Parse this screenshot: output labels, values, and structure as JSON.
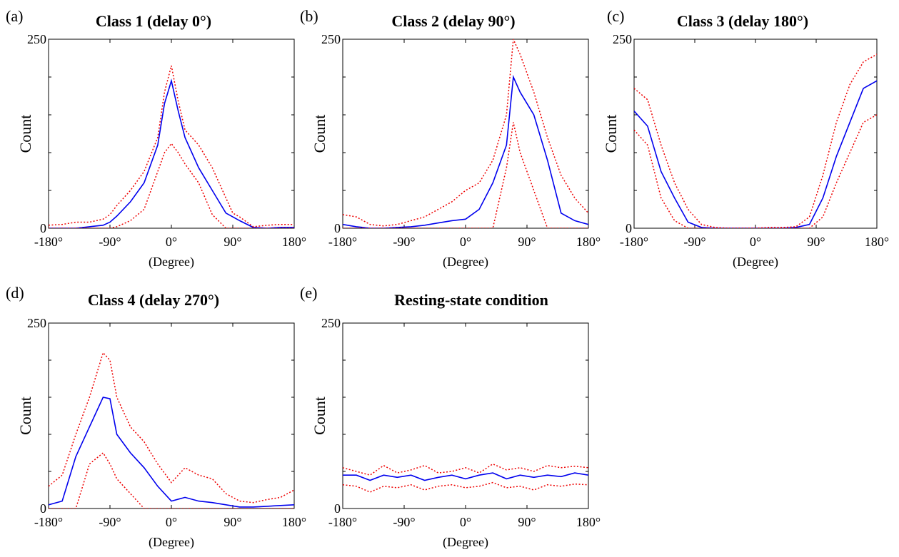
{
  "figure": {
    "xlabel": "(Degree)",
    "ylabel": "Count",
    "colors": {
      "mean": "#0000ee",
      "bounds": "#ee0000"
    }
  },
  "chart_data": [
    {
      "type": "line",
      "panel": "(a)",
      "title": "Class 1 (delay 0°)",
      "xlabel": "(Degree)",
      "ylabel": "Count",
      "xlim": [
        -180,
        180
      ],
      "ylim": [
        0,
        250
      ],
      "x_ticks": [
        "-180°",
        "-90°",
        "0°",
        "90°",
        "180°"
      ],
      "y_ticks": [
        "0",
        "250"
      ],
      "series": [
        {
          "style": "solid",
          "x": [
            -180,
            -160,
            -140,
            -120,
            -100,
            -90,
            -80,
            -60,
            -40,
            -20,
            -10,
            0,
            10,
            20,
            40,
            60,
            80,
            90,
            100,
            120,
            140,
            160,
            180
          ],
          "values": [
            0,
            0,
            0,
            2,
            4,
            8,
            16,
            35,
            60,
            110,
            165,
            195,
            155,
            120,
            80,
            50,
            20,
            15,
            10,
            1,
            0,
            1,
            1
          ]
        },
        {
          "style": "dotted",
          "x": [
            -180,
            -160,
            -140,
            -120,
            -100,
            -90,
            -80,
            -60,
            -40,
            -20,
            -10,
            0,
            10,
            20,
            40,
            60,
            80,
            90,
            100,
            120,
            140,
            160,
            180
          ],
          "values": [
            4,
            5,
            8,
            8,
            12,
            18,
            30,
            50,
            75,
            120,
            180,
            215,
            168,
            130,
            110,
            80,
            40,
            20,
            15,
            2,
            4,
            5,
            5
          ]
        },
        {
          "style": "dotted",
          "x": [
            -180,
            -160,
            -140,
            -120,
            -100,
            -90,
            -80,
            -60,
            -40,
            -20,
            -10,
            0,
            10,
            20,
            40,
            60,
            80,
            90,
            100,
            120,
            140,
            160,
            180
          ],
          "values": [
            0,
            0,
            0,
            0,
            0,
            0,
            2,
            10,
            25,
            75,
            100,
            112,
            100,
            85,
            60,
            18,
            0,
            0,
            0,
            0,
            0,
            0,
            0
          ]
        }
      ]
    },
    {
      "type": "line",
      "panel": "(b)",
      "title": "Class 2 (delay 90°)",
      "xlabel": "(Degree)",
      "ylabel": "Count",
      "xlim": [
        -180,
        180
      ],
      "ylim": [
        0,
        250
      ],
      "x_ticks": [
        "-180°",
        "-90°",
        "0°",
        "90°",
        "180°"
      ],
      "y_ticks": [
        "0",
        "250"
      ],
      "series": [
        {
          "style": "solid",
          "x": [
            -180,
            -160,
            -140,
            -120,
            -100,
            -80,
            -60,
            -40,
            -20,
            0,
            20,
            40,
            60,
            70,
            80,
            100,
            120,
            140,
            160,
            180
          ],
          "values": [
            5,
            2,
            0,
            0,
            1,
            2,
            4,
            7,
            10,
            12,
            25,
            60,
            110,
            200,
            180,
            150,
            90,
            20,
            10,
            5
          ]
        },
        {
          "style": "dotted",
          "x": [
            -180,
            -160,
            -140,
            -120,
            -100,
            -80,
            -60,
            -40,
            -20,
            0,
            20,
            40,
            60,
            70,
            80,
            100,
            120,
            140,
            160,
            180
          ],
          "values": [
            18,
            15,
            5,
            3,
            5,
            10,
            15,
            25,
            35,
            50,
            60,
            90,
            150,
            270,
            230,
            180,
            120,
            70,
            40,
            20
          ]
        },
        {
          "style": "dotted",
          "x": [
            -180,
            -160,
            -140,
            -120,
            -100,
            -80,
            -60,
            -40,
            -20,
            0,
            20,
            40,
            60,
            70,
            80,
            100,
            120,
            140,
            160,
            180
          ],
          "values": [
            0,
            0,
            0,
            0,
            0,
            0,
            0,
            0,
            0,
            0,
            0,
            0,
            80,
            140,
            100,
            50,
            0,
            0,
            0,
            0
          ]
        }
      ]
    },
    {
      "type": "line",
      "panel": "(c)",
      "title": "Class 3 (delay 180°)",
      "xlabel": "(Degree)",
      "ylabel": "Count",
      "xlim": [
        -180,
        180
      ],
      "ylim": [
        0,
        250
      ],
      "x_ticks": [
        "-180°",
        "-90°",
        "0°",
        "90°",
        "180°"
      ],
      "y_ticks": [
        "0",
        "250"
      ],
      "series": [
        {
          "style": "solid",
          "x": [
            -180,
            -160,
            -140,
            -120,
            -100,
            -80,
            -60,
            -40,
            -20,
            0,
            20,
            40,
            60,
            80,
            100,
            120,
            140,
            160,
            180
          ],
          "values": [
            155,
            135,
            75,
            40,
            8,
            1,
            0,
            0,
            0,
            0,
            0,
            0,
            1,
            5,
            40,
            95,
            140,
            185,
            195
          ]
        },
        {
          "style": "dotted",
          "x": [
            -180,
            -160,
            -140,
            -120,
            -100,
            -80,
            -60,
            -40,
            -20,
            0,
            20,
            40,
            60,
            80,
            100,
            120,
            140,
            160,
            180
          ],
          "values": [
            185,
            170,
            110,
            60,
            25,
            5,
            1,
            0,
            0,
            0,
            1,
            1,
            2,
            15,
            70,
            140,
            190,
            220,
            230
          ]
        },
        {
          "style": "dotted",
          "x": [
            -180,
            -160,
            -140,
            -120,
            -100,
            -80,
            -60,
            -40,
            -20,
            0,
            20,
            40,
            60,
            80,
            100,
            120,
            140,
            160,
            180
          ],
          "values": [
            130,
            110,
            40,
            10,
            0,
            0,
            0,
            0,
            0,
            0,
            0,
            0,
            0,
            0,
            15,
            60,
            100,
            140,
            150
          ]
        }
      ]
    },
    {
      "type": "line",
      "panel": "(d)",
      "title": "Class 4 (delay 270°)",
      "xlabel": "(Degree)",
      "ylabel": "Count",
      "xlim": [
        -180,
        180
      ],
      "ylim": [
        0,
        250
      ],
      "x_ticks": [
        "-180°",
        "-90°",
        "0°",
        "90°",
        "180°"
      ],
      "y_ticks": [
        "0",
        "250"
      ],
      "series": [
        {
          "style": "solid",
          "x": [
            -180,
            -160,
            -140,
            -120,
            -100,
            -90,
            -80,
            -60,
            -40,
            -20,
            0,
            20,
            40,
            60,
            80,
            100,
            120,
            140,
            160,
            180
          ],
          "values": [
            5,
            10,
            70,
            110,
            150,
            148,
            100,
            75,
            55,
            30,
            10,
            15,
            10,
            8,
            5,
            2,
            2,
            3,
            4,
            5
          ]
        },
        {
          "style": "dotted",
          "x": [
            -180,
            -160,
            -140,
            -120,
            -100,
            -90,
            -80,
            -60,
            -40,
            -20,
            0,
            20,
            40,
            60,
            80,
            100,
            120,
            140,
            160,
            180
          ],
          "values": [
            30,
            45,
            100,
            150,
            210,
            200,
            150,
            110,
            90,
            60,
            35,
            55,
            45,
            40,
            20,
            10,
            8,
            12,
            15,
            25
          ]
        },
        {
          "style": "dotted",
          "x": [
            -180,
            -160,
            -140,
            -120,
            -100,
            -90,
            -80,
            -60,
            -40,
            -20,
            0,
            20,
            40,
            60,
            80,
            100,
            120,
            140,
            160,
            180
          ],
          "values": [
            0,
            0,
            0,
            60,
            75,
            60,
            40,
            20,
            0,
            0,
            0,
            0,
            0,
            0,
            0,
            0,
            0,
            0,
            0,
            0
          ]
        }
      ]
    },
    {
      "type": "line",
      "panel": "(e)",
      "title": "Resting-state condition",
      "xlabel": "(Degree)",
      "ylabel": "Count",
      "xlim": [
        -180,
        180
      ],
      "ylim": [
        0,
        250
      ],
      "x_ticks": [
        "-180°",
        "-90°",
        "0°",
        "90°",
        "180°"
      ],
      "y_ticks": [
        "0",
        "250"
      ],
      "series": [
        {
          "style": "solid",
          "x": [
            -180,
            -160,
            -140,
            -120,
            -100,
            -80,
            -60,
            -40,
            -20,
            0,
            20,
            40,
            60,
            80,
            100,
            120,
            140,
            160,
            180
          ],
          "values": [
            45,
            45,
            38,
            45,
            42,
            45,
            38,
            42,
            45,
            40,
            45,
            48,
            40,
            45,
            42,
            45,
            43,
            48,
            45
          ]
        },
        {
          "style": "dotted",
          "x": [
            -180,
            -160,
            -140,
            -120,
            -100,
            -80,
            -60,
            -40,
            -20,
            0,
            20,
            40,
            60,
            80,
            100,
            120,
            140,
            160,
            180
          ],
          "values": [
            55,
            50,
            45,
            58,
            48,
            52,
            58,
            48,
            50,
            55,
            48,
            60,
            52,
            55,
            50,
            58,
            55,
            57,
            55
          ]
        },
        {
          "style": "dotted",
          "x": [
            -180,
            -160,
            -140,
            -120,
            -100,
            -80,
            -60,
            -40,
            -20,
            0,
            20,
            40,
            60,
            80,
            100,
            120,
            140,
            160,
            180
          ],
          "values": [
            32,
            30,
            22,
            30,
            28,
            32,
            25,
            30,
            32,
            28,
            30,
            35,
            28,
            30,
            25,
            32,
            30,
            33,
            32
          ]
        }
      ]
    }
  ]
}
